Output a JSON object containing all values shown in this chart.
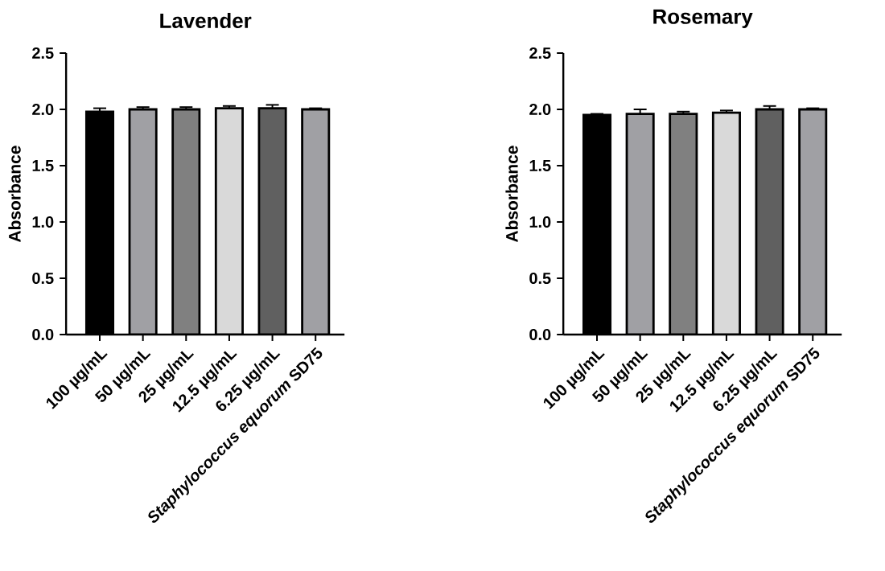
{
  "chart_data": [
    {
      "type": "bar",
      "title": "Lavender",
      "ylabel": "Absorbance",
      "categories": [
        "100 µg/mL",
        "50 µg/mL",
        "25 µg/mL",
        "12.5 µg/mL",
        "6.25 µg/mL",
        "*Staphylococcus equorum* SD75"
      ],
      "values": [
        1.98,
        2.0,
        2.0,
        2.01,
        2.01,
        2.0
      ],
      "errors": [
        0.03,
        0.02,
        0.02,
        0.02,
        0.03,
        0.01
      ],
      "colors": [
        "#000000",
        "#a0a0a4",
        "#808080",
        "#d9d9d9",
        "#606060",
        "#a0a0a4"
      ],
      "ylim": [
        0,
        2.5
      ],
      "yticks": [
        {
          "value": 0,
          "label": "0.0"
        },
        {
          "value": 0.5,
          "label": "0.5"
        },
        {
          "value": 1,
          "label": "1.0"
        },
        {
          "value": 1.5,
          "label": "1.5"
        },
        {
          "value": 2,
          "label": "2.0"
        },
        {
          "value": 2.5,
          "label": "2.5"
        }
      ]
    },
    {
      "type": "bar",
      "title": "Rosemary",
      "ylabel": "Absorbance",
      "categories": [
        "100 µg/mL",
        "50 µg/mL",
        "25 µg/mL",
        "12.5 µg/mL",
        "6.25 µg/mL",
        "*Staphylococcus equorum* SD75"
      ],
      "values": [
        1.95,
        1.96,
        1.96,
        1.97,
        2.0,
        2.0
      ],
      "errors": [
        0.01,
        0.04,
        0.02,
        0.02,
        0.03,
        0.01
      ],
      "colors": [
        "#000000",
        "#a0a0a4",
        "#808080",
        "#d9d9d9",
        "#606060",
        "#a0a0a4"
      ],
      "ylim": [
        0,
        2.5
      ],
      "yticks": [
        {
          "value": 0,
          "label": "0.0"
        },
        {
          "value": 0.5,
          "label": "0.5"
        },
        {
          "value": 1,
          "label": "1.0"
        },
        {
          "value": 1.5,
          "label": "1.5"
        },
        {
          "value": 2,
          "label": "2.0"
        },
        {
          "value": 2.5,
          "label": "2.5"
        }
      ]
    }
  ]
}
